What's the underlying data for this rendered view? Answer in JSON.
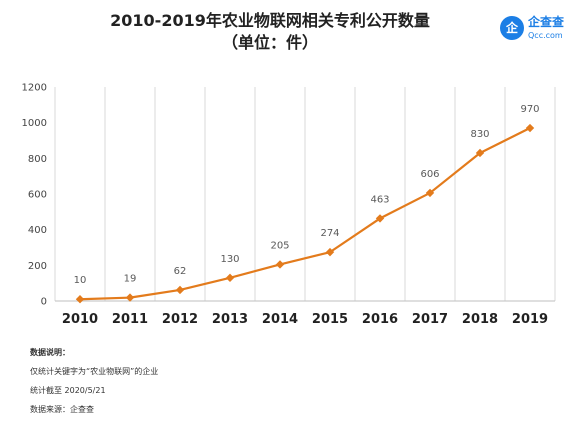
{
  "header": {
    "title_line1": "2010-2019年农业物联网相关专利公开数量",
    "title_line2": "（单位：件）"
  },
  "logo": {
    "icon": "logo-qichacha-icon",
    "mark": "企",
    "name": "企查查",
    "domain": "Qcc.com",
    "color": "#1b7ee5"
  },
  "chart_data": {
    "type": "line",
    "categories": [
      "2010",
      "2011",
      "2012",
      "2013",
      "2014",
      "2015",
      "2016",
      "2017",
      "2018",
      "2019"
    ],
    "series": [
      {
        "values": [
          10,
          19,
          62,
          130,
          205,
          274,
          463,
          606,
          830,
          970
        ],
        "color": "#e37b1c",
        "marker": "diamond"
      }
    ],
    "data_labels": [
      "10",
      "19",
      "62",
      "130",
      "205",
      "274",
      "463",
      "606",
      "830",
      "970"
    ],
    "y_ticks": [
      0,
      200,
      400,
      600,
      800,
      1000,
      1200
    ],
    "ylim": [
      0,
      1200
    ],
    "grid": "vertical",
    "legend": "none"
  },
  "notes": {
    "heading": "数据说明：",
    "line1": "仅统计关键字为“农业物联网”的企业",
    "line2": "统计截至 2020/5/21",
    "line3": "数据来源：企查查"
  }
}
